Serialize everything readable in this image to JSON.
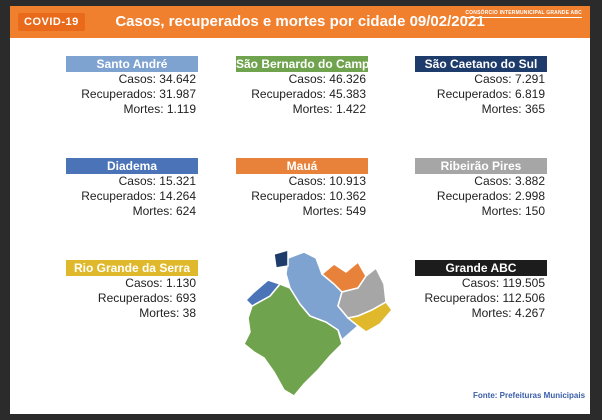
{
  "header": {
    "badge": "COVID-19",
    "title": "Casos, recuperados e mortes por cidade 09/02/2021",
    "org": "CONSÓRCIO INTERMUNICIPAL GRANDE ABC"
  },
  "cities": [
    {
      "name": "Santo André",
      "color": "#7fa3d1",
      "casos": "Casos: 34.642",
      "recuperados": "Recuperados: 31.987",
      "mortes": "Mortes: 1.119"
    },
    {
      "name": "São Bernardo do Campo",
      "color": "#6fa34d",
      "casos": "Casos: 46.326",
      "recuperados": "Recuperados: 45.383",
      "mortes": "Mortes: 1.422"
    },
    {
      "name": "São Caetano do Sul",
      "color": "#1d3b6b",
      "casos": "Casos: 7.291",
      "recuperados": "Recuperados: 6.819",
      "mortes": "Mortes: 365"
    },
    {
      "name": "Diadema",
      "color": "#4a73b8",
      "casos": "Casos: 15.321",
      "recuperados": "Recuperados: 14.264",
      "mortes": "Mortes: 624"
    },
    {
      "name": "Mauá",
      "color": "#e8823b",
      "casos": "Casos: 10.913",
      "recuperados": "Recuperados: 10.362",
      "mortes": "Mortes: 549"
    },
    {
      "name": "Ribeirão Pires",
      "color": "#a6a6a6",
      "casos": "Casos: 3.882",
      "recuperados": "Recuperados: 2.998",
      "mortes": "Mortes: 150"
    },
    {
      "name": "Rio Grande da Serra",
      "color": "#e0b82b",
      "casos": "Casos: 1.130",
      "recuperados": "Recuperados: 693",
      "mortes": "Mortes: 38"
    },
    {
      "name": "Grande ABC",
      "color": "#1c1c1c",
      "casos": "Casos: 119.505",
      "recuperados": "Recuperados: 112.506",
      "mortes": "Mortes: 4.267"
    }
  ],
  "source": "Fonte: Prefeituras Municipais"
}
